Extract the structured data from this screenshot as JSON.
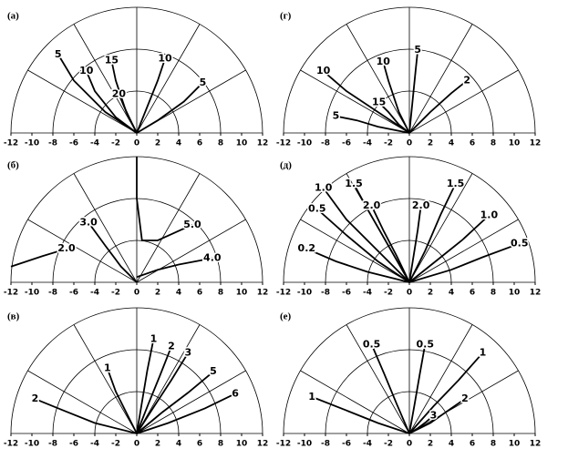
{
  "chart_data": [
    {
      "type": "polar-contour",
      "title": "(а)",
      "xlim": [
        -12,
        12
      ],
      "xticks": [
        -12,
        -10,
        -8,
        -6,
        -4,
        -2,
        0,
        2,
        4,
        6,
        8,
        10,
        12
      ],
      "grid": true,
      "color": "#000000",
      "contours": [
        {
          "level": 5,
          "x": [
            0,
            -3,
            -6,
            -7.5
          ],
          "y": [
            0,
            2,
            5,
            7.5
          ]
        },
        {
          "level": 10,
          "x": [
            0,
            -2,
            -4,
            -4.8
          ],
          "y": [
            0,
            1.5,
            4,
            5.9
          ]
        },
        {
          "level": 15,
          "x": [
            0,
            -1,
            -2,
            -2.4
          ],
          "y": [
            0,
            2,
            5,
            6.9
          ]
        },
        {
          "level": 20,
          "x": [
            0,
            -0.5,
            -1.2,
            -1.7
          ],
          "y": [
            0,
            1,
            2.5,
            3.7
          ]
        },
        {
          "level": 10,
          "x": [
            0,
            1,
            2,
            2.7
          ],
          "y": [
            0,
            2.5,
            5,
            7.1
          ]
        },
        {
          "level": 5,
          "x": [
            0,
            2,
            4.5,
            6.3
          ],
          "y": [
            0,
            1.2,
            3,
            4.8
          ]
        }
      ]
    },
    {
      "type": "polar-contour",
      "title": "(г)",
      "xlim": [
        -12,
        12
      ],
      "xticks": [
        -12,
        -10,
        -8,
        -6,
        -4,
        -2,
        0,
        2,
        4,
        6,
        8,
        10,
        12
      ],
      "grid": true,
      "color": "#000000",
      "contours": [
        {
          "level": 10,
          "x": [
            0,
            -3,
            -6,
            -8.2
          ],
          "y": [
            0,
            2,
            4,
            5.9
          ]
        },
        {
          "level": 10,
          "x": [
            0,
            -1,
            -2,
            -2.5
          ],
          "y": [
            0,
            2,
            5,
            6.8
          ]
        },
        {
          "level": 15,
          "x": [
            0,
            -1,
            -2,
            -2.9
          ],
          "y": [
            0,
            0.8,
            2,
            2.9
          ]
        },
        {
          "level": 5,
          "x": [
            0,
            -3,
            -5,
            -7
          ],
          "y": [
            0,
            0.6,
            1.2,
            1.6
          ]
        },
        {
          "level": 5,
          "x": [
            0,
            0.3,
            0.6,
            0.8
          ],
          "y": [
            0,
            3,
            6,
            7.9
          ]
        },
        {
          "level": 2,
          "x": [
            0,
            2,
            4,
            5.5
          ],
          "y": [
            0,
            2,
            3.8,
            5
          ]
        }
      ]
    },
    {
      "type": "polar-contour",
      "title": "(б)",
      "xlim": [
        -12,
        12
      ],
      "xticks": [
        -12,
        -10,
        -8,
        -6,
        -4,
        -2,
        0,
        2,
        4,
        6,
        8,
        10,
        12
      ],
      "grid": true,
      "color": "#000000",
      "contours": [
        {
          "level": {
            "value": 3,
            "label": "3.0"
          },
          "x": [
            0,
            -1.5,
            -3,
            -4.6
          ],
          "y": [
            0,
            1.5,
            3.5,
            5.7
          ]
        },
        {
          "level": {
            "value": 2,
            "label": "2.0"
          },
          "x": [
            -12,
            -9,
            -6.7
          ],
          "y": [
            1.5,
            2.5,
            3.2
          ]
        },
        {
          "level": {
            "value": 5,
            "label": "5.0"
          },
          "x": [
            0,
            0,
            0.5,
            2,
            5.3
          ],
          "y": [
            12,
            8,
            4,
            4,
            5.5
          ]
        },
        {
          "level": {
            "value": 4,
            "label": "4.0"
          },
          "x": [
            0,
            2,
            4,
            7.2
          ],
          "y": [
            0.5,
            1.2,
            1.7,
            2.3
          ]
        }
      ]
    },
    {
      "type": "polar-contour",
      "title": "(д)",
      "xlim": [
        -12,
        12
      ],
      "xticks": [
        -12,
        -10,
        -8,
        -6,
        -4,
        -2,
        0,
        2,
        4,
        6,
        8,
        10,
        12
      ],
      "grid": true,
      "color": "#000000",
      "contours": [
        {
          "level": {
            "value": 1,
            "label": "1.0"
          },
          "x": [
            0,
            -3,
            -6,
            -8.2
          ],
          "y": [
            0,
            3,
            6,
            9
          ]
        },
        {
          "level": 0.5,
          "x": [
            0,
            -3,
            -6,
            -8.8
          ],
          "y": [
            0,
            2,
            4.5,
            7
          ]
        },
        {
          "level": 1.5,
          "x": [
            0,
            -2,
            -4,
            -5.3
          ],
          "y": [
            0,
            3.5,
            7,
            9.4
          ]
        },
        {
          "level": {
            "value": 2,
            "label": "2.0"
          },
          "x": [
            0,
            -1.2,
            -2.5,
            -3.6
          ],
          "y": [
            0,
            2.5,
            5,
            7.3
          ]
        },
        {
          "level": {
            "value": 2,
            "label": "2.0"
          },
          "x": [
            0,
            0.4,
            0.8,
            1.1
          ],
          "y": [
            0,
            2.5,
            5,
            7.3
          ]
        },
        {
          "level": 1.5,
          "x": [
            0,
            1.5,
            3,
            4.4
          ],
          "y": [
            0,
            3,
            6.5,
            9.4
          ]
        },
        {
          "level": {
            "value": 1,
            "label": "1.0"
          },
          "x": [
            0,
            2.5,
            5,
            7.6
          ],
          "y": [
            0,
            2,
            4,
            6.4
          ]
        },
        {
          "level": 0.5,
          "x": [
            0,
            4,
            7,
            10.5
          ],
          "y": [
            0,
            1.2,
            2.4,
            3.7
          ]
        },
        {
          "level": 0.2,
          "x": [
            0,
            -4,
            -7,
            -9.8
          ],
          "y": [
            0,
            1,
            2,
            3.2
          ]
        }
      ]
    },
    {
      "type": "polar-contour",
      "title": "(в)",
      "xlim": [
        -12,
        12
      ],
      "xticks": [
        -12,
        -10,
        -8,
        -6,
        -4,
        -2,
        0,
        2,
        4,
        6,
        8,
        10,
        12
      ],
      "grid": true,
      "color": "#000000",
      "contours": [
        {
          "level": 1,
          "x": [
            0,
            -1,
            -2,
            -2.8
          ],
          "y": [
            0,
            2,
            4,
            6.2
          ]
        },
        {
          "level": 2,
          "x": [
            0,
            -4,
            -7,
            -9.7
          ],
          "y": [
            0,
            1,
            2.2,
            3.3
          ]
        },
        {
          "level": 1,
          "x": [
            0,
            0.5,
            1,
            1.6
          ],
          "y": [
            0,
            3,
            6,
            9
          ]
        },
        {
          "level": 2,
          "x": [
            0,
            1.1,
            2.2,
            3.3
          ],
          "y": [
            0,
            2.8,
            5.5,
            8.3
          ]
        },
        {
          "level": 3,
          "x": [
            0,
            1.6,
            3.3,
            4.9
          ],
          "y": [
            0,
            2.5,
            5.1,
            7.7
          ]
        },
        {
          "level": 5,
          "x": [
            0,
            2.4,
            4.9,
            7.3
          ],
          "y": [
            0,
            2,
            3.9,
            5.9
          ]
        },
        {
          "level": 6,
          "x": [
            0,
            3,
            6.5,
            9.4
          ],
          "y": [
            0,
            1,
            2.4,
            3.8
          ]
        }
      ]
    },
    {
      "type": "polar-contour",
      "title": "(е)",
      "xlim": [
        -12,
        12
      ],
      "xticks": [
        -12,
        -10,
        -8,
        -6,
        -4,
        -2,
        0,
        2,
        4,
        6,
        8,
        10,
        12
      ],
      "grid": true,
      "color": "#000000",
      "contours": [
        {
          "level": 0.5,
          "x": [
            0,
            -1.2,
            -2.4,
            -3.6
          ],
          "y": [
            0,
            2.8,
            5.7,
            8.5
          ]
        },
        {
          "level": 0.5,
          "x": [
            0,
            0.5,
            1,
            1.5
          ],
          "y": [
            0,
            2.8,
            5.7,
            8.5
          ]
        },
        {
          "level": 1,
          "x": [
            0,
            2.3,
            4.7,
            7
          ],
          "y": [
            0,
            2.6,
            5.1,
            7.7
          ]
        },
        {
          "level": 1,
          "x": [
            0,
            -3,
            -6,
            -9.3
          ],
          "y": [
            0,
            1,
            2.2,
            3.5
          ]
        },
        {
          "level": 2,
          "x": [
            0,
            2,
            4,
            5.3
          ],
          "y": [
            0,
            1,
            2.4,
            3.3
          ]
        },
        {
          "level": 3,
          "x": [
            0,
            0.8,
            1.6,
            2.3
          ],
          "y": [
            0,
            0.5,
            1.1,
            1.7
          ]
        }
      ]
    }
  ]
}
